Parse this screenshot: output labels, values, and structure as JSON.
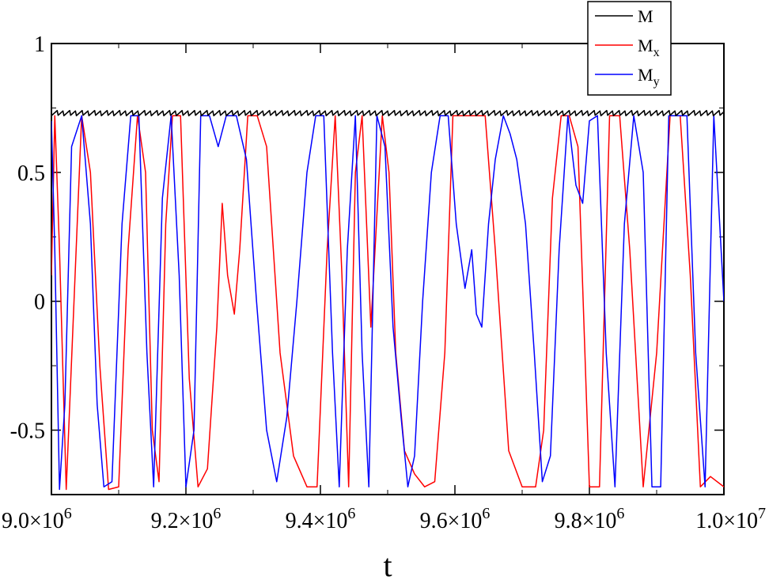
{
  "chart_data": {
    "type": "line",
    "title": "",
    "xlabel": "t",
    "ylabel": "",
    "xlim": [
      9000000,
      10000000
    ],
    "ylim": [
      -0.75,
      1.0
    ],
    "grid": false,
    "legend_position": "top-right",
    "x_ticks": [
      {
        "value": 9000000,
        "mantissa": "9.0",
        "exponent": "6"
      },
      {
        "value": 9200000,
        "mantissa": "9.2",
        "exponent": "6"
      },
      {
        "value": 9400000,
        "mantissa": "9.4",
        "exponent": "6"
      },
      {
        "value": 9600000,
        "mantissa": "9.6",
        "exponent": "6"
      },
      {
        "value": 9800000,
        "mantissa": "9.8",
        "exponent": "6"
      },
      {
        "value": 10000000,
        "mantissa": "1.0",
        "exponent": "7"
      }
    ],
    "x_tick_times": "×10",
    "y_ticks": [
      {
        "value": -0.5,
        "label": "-0.5"
      },
      {
        "value": 0,
        "label": "0"
      },
      {
        "value": 0.5,
        "label": "0.5"
      },
      {
        "value": 1,
        "label": "1"
      }
    ],
    "legend": [
      {
        "base": "M",
        "sub": ""
      },
      {
        "base": "M",
        "sub": "x"
      },
      {
        "base": "M",
        "sub": "y"
      }
    ],
    "series": [
      {
        "name": "M",
        "color": "#000000",
        "x": [
          9000000,
          9100000,
          9200000,
          9300000,
          9400000,
          9500000,
          9600000,
          9700000,
          9800000,
          9900000,
          10000000
        ],
        "y": [
          0.73,
          0.73,
          0.73,
          0.73,
          0.73,
          0.73,
          0.73,
          0.73,
          0.73,
          0.73,
          0.73
        ]
      },
      {
        "name": "Mx",
        "color": "#ff0000",
        "x": [
          9000000,
          9005000,
          9012000,
          9022000,
          9032000,
          9045000,
          9058000,
          9072000,
          9085000,
          9100000,
          9114000,
          9128000,
          9140000,
          9150000,
          9160000,
          9170000,
          9180000,
          9192000,
          9205000,
          9218000,
          9232000,
          9246000,
          9254000,
          9262000,
          9272000,
          9280000,
          9292000,
          9306000,
          9320000,
          9340000,
          9360000,
          9380000,
          9395000,
          9410000,
          9422000,
          9432000,
          9442000,
          9452000,
          9462000,
          9475000,
          9492000,
          9502000,
          9512000,
          9525000,
          9540000,
          9555000,
          9570000,
          9585000,
          9597000,
          9612000,
          9630000,
          9645000,
          9660000,
          9680000,
          9700000,
          9720000,
          9732000,
          9745000,
          9758000,
          9770000,
          9783000,
          9800000,
          9815000,
          9830000,
          9845000,
          9860000,
          9880000,
          9900000,
          9920000,
          9935000,
          9950000,
          9965000,
          9980000,
          10000000
        ],
        "y": [
          0.1,
          0.72,
          0.2,
          -0.73,
          -0.1,
          0.72,
          0.5,
          -0.25,
          -0.73,
          -0.72,
          0.2,
          0.72,
          0.5,
          -0.5,
          -0.7,
          0.3,
          0.72,
          0.72,
          -0.3,
          -0.72,
          -0.65,
          -0.1,
          0.38,
          0.1,
          -0.05,
          0.2,
          0.72,
          0.72,
          0.6,
          -0.2,
          -0.6,
          -0.72,
          -0.72,
          0.2,
          0.72,
          0.1,
          -0.72,
          0.5,
          0.72,
          -0.1,
          0.72,
          0.5,
          -0.2,
          -0.58,
          -0.67,
          -0.72,
          -0.7,
          -0.2,
          0.72,
          0.72,
          0.72,
          0.72,
          0.2,
          -0.58,
          -0.72,
          -0.72,
          -0.5,
          0.4,
          0.72,
          0.72,
          0.6,
          -0.72,
          -0.72,
          0.72,
          0.72,
          0.2,
          -0.72,
          -0.2,
          0.72,
          0.72,
          0.1,
          -0.72,
          -0.68,
          -0.72
        ]
      },
      {
        "name": "My",
        "color": "#0000ff",
        "x": [
          9000000,
          9005000,
          9012000,
          9020000,
          9030000,
          9045000,
          9058000,
          9068000,
          9078000,
          9090000,
          9105000,
          9118000,
          9130000,
          9142000,
          9152000,
          9165000,
          9178000,
          9190000,
          9200000,
          9212000,
          9222000,
          9235000,
          9248000,
          9260000,
          9275000,
          9290000,
          9305000,
          9320000,
          9335000,
          9350000,
          9365000,
          9380000,
          9393000,
          9405000,
          9418000,
          9428000,
          9440000,
          9452000,
          9462000,
          9472000,
          9484000,
          9496000,
          9508000,
          9520000,
          9530000,
          9540000,
          9552000,
          9565000,
          9578000,
          9590000,
          9602000,
          9615000,
          9625000,
          9632000,
          9640000,
          9650000,
          9660000,
          9672000,
          9682000,
          9692000,
          9705000,
          9718000,
          9730000,
          9742000,
          9755000,
          9768000,
          9780000,
          9790000,
          9800000,
          9812000,
          9825000,
          9838000,
          9852000,
          9866000,
          9880000,
          9893000,
          9906000,
          9918000,
          9932000,
          9945000,
          9958000,
          9972000,
          9985000,
          10000000
        ],
        "y": [
          0.7,
          0.2,
          -0.73,
          -0.4,
          0.6,
          0.72,
          0.3,
          -0.4,
          -0.72,
          -0.7,
          0.3,
          0.72,
          0.72,
          -0.2,
          -0.72,
          0.4,
          0.72,
          0.1,
          -0.72,
          -0.5,
          0.72,
          0.72,
          0.6,
          0.72,
          0.72,
          0.55,
          0.0,
          -0.5,
          -0.7,
          -0.45,
          0.0,
          0.5,
          0.72,
          0.72,
          -0.2,
          -0.72,
          0.2,
          0.72,
          -0.2,
          -0.72,
          0.72,
          0.6,
          -0.1,
          -0.45,
          -0.72,
          -0.6,
          0.0,
          0.5,
          0.72,
          0.72,
          0.3,
          0.05,
          0.2,
          -0.05,
          -0.1,
          0.3,
          0.55,
          0.72,
          0.65,
          0.55,
          0.3,
          -0.2,
          -0.7,
          -0.6,
          0.2,
          0.72,
          0.45,
          0.38,
          0.7,
          0.72,
          -0.2,
          -0.72,
          0.3,
          0.72,
          0.5,
          -0.72,
          -0.72,
          0.72,
          0.72,
          0.72,
          -0.2,
          -0.72,
          0.72,
          0.0
        ]
      }
    ]
  }
}
